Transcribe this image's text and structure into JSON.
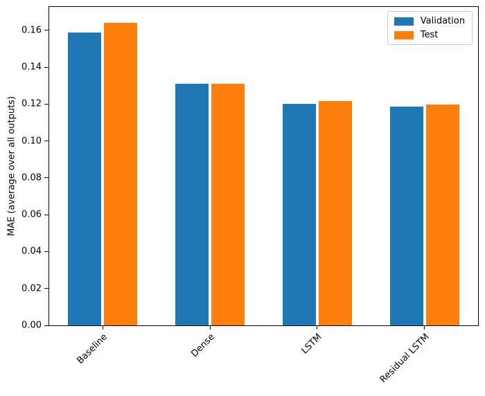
{
  "chart_data": {
    "type": "bar",
    "title": "",
    "categories": [
      "Baseline",
      "Dense",
      "LSTM",
      "Residual LSTM"
    ],
    "series": [
      {
        "name": "Validation",
        "color": "#1f77b4",
        "values": [
          0.159,
          0.131,
          0.1202,
          0.1185
        ]
      },
      {
        "name": "Test",
        "color": "#ff7f0e",
        "values": [
          0.1639,
          0.1311,
          0.1218,
          0.1196
        ]
      }
    ],
    "xlabel": "",
    "ylabel": "MAE (average over all outputs)",
    "ylim": [
      0,
      0.1727
    ],
    "yticks": [
      0,
      0.02,
      0.04,
      0.06,
      0.08,
      0.1,
      0.12,
      0.14,
      0.16
    ],
    "ytick_decimals": 2,
    "xtick_rotation_deg": 45,
    "grid": false,
    "legend": {
      "position": "upper right",
      "labels": [
        "Validation",
        "Test"
      ]
    }
  },
  "colors": {
    "validation": "#1f77b4",
    "test": "#ff7f0e",
    "spine": "#000000",
    "legend_border": "#cccccc",
    "background": "#ffffff"
  }
}
